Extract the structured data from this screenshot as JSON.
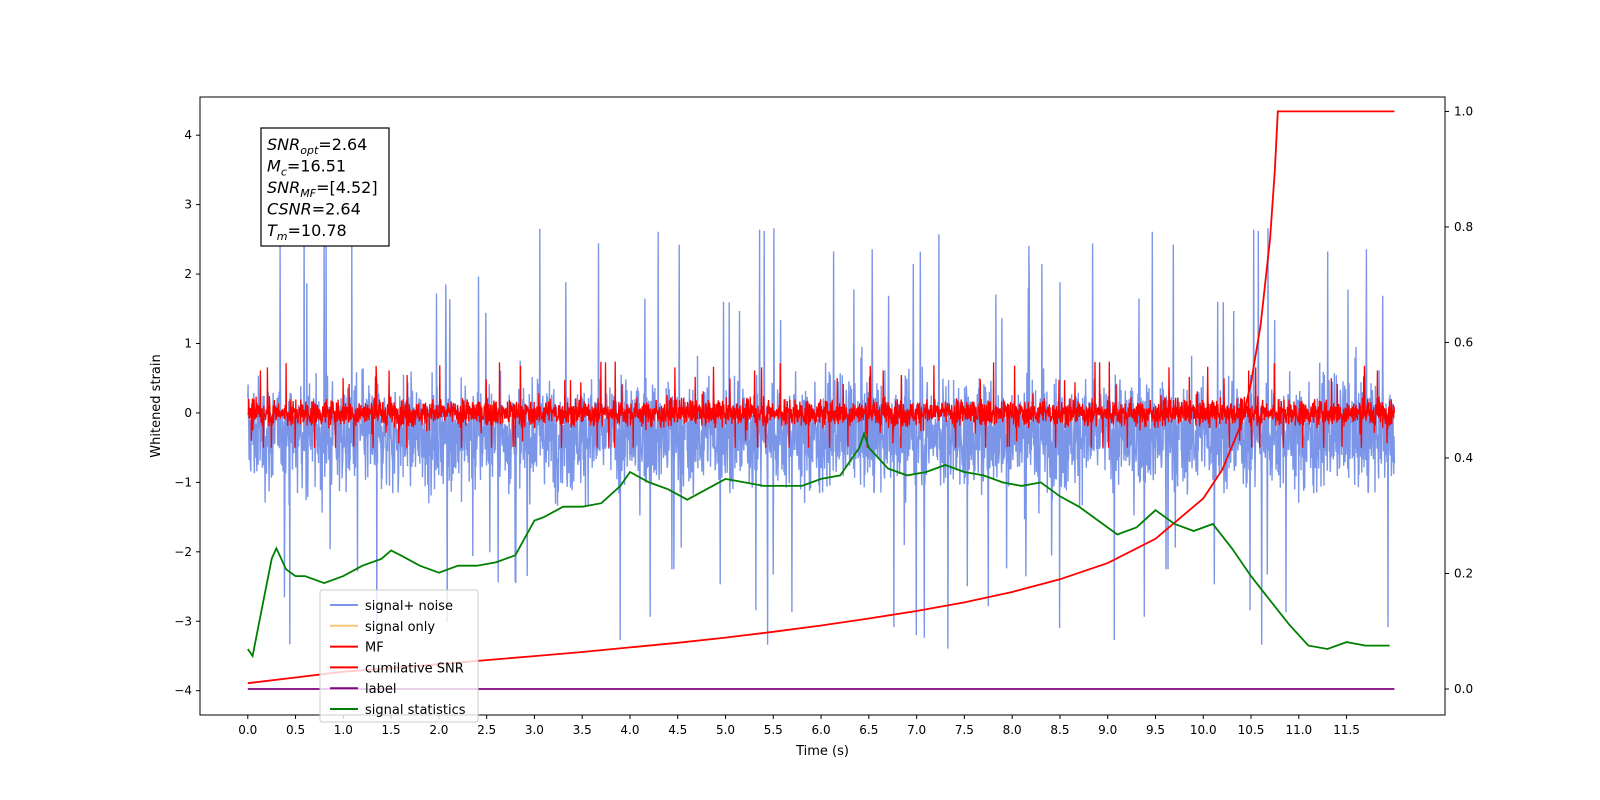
{
  "chart_data": {
    "type": "line",
    "xlabel": "Time (s)",
    "ylabel": "Whitened strain",
    "xlim": [
      -0.5,
      12.53
    ],
    "ylim": [
      -4.35,
      4.55
    ],
    "y2lim": [
      -0.045,
      1.025
    ],
    "x_ticks": [
      "0.0",
      "0.5",
      "1.0",
      "1.5",
      "2.0",
      "2.5",
      "3.0",
      "3.5",
      "4.0",
      "4.5",
      "5.0",
      "5.5",
      "6.0",
      "6.5",
      "7.0",
      "7.5",
      "8.0",
      "8.5",
      "9.0",
      "9.5",
      "10.0",
      "10.5",
      "11.0",
      "11.5"
    ],
    "y_ticks": [
      "−4",
      "−3",
      "−2",
      "−1",
      "0",
      "1",
      "2",
      "3",
      "4"
    ],
    "y2_ticks": [
      "0.0",
      "0.2",
      "0.4",
      "0.6",
      "0.8",
      "1.0"
    ],
    "grid": false,
    "legend_position": "lower-left",
    "annotation": {
      "lines": [
        {
          "base": "SNR",
          "sub": "opt",
          "value": "=2.64"
        },
        {
          "base": "M",
          "sub": "c",
          "value": "=16.51"
        },
        {
          "base": "SNR",
          "sub": "MF",
          "value": "=[4.52]"
        },
        {
          "base": "CSNR",
          "sub": "",
          "value": "=2.64"
        },
        {
          "base": "T",
          "sub": "m",
          "value": "=10.78"
        }
      ]
    },
    "series": [
      {
        "name": "signal+ noise",
        "color": "#7b96e8",
        "axis": "left",
        "style": "noise",
        "x_range": [
          0.0,
          12.0
        ],
        "mean": -0.3,
        "amplitude": 1.0,
        "peak_range": [
          -3.9,
          4.15
        ]
      },
      {
        "name": "signal only",
        "color": "#f5c97a",
        "axis": "left",
        "style": "hidden",
        "x_range": [
          0.0,
          12.0
        ]
      },
      {
        "name": "MF",
        "color": "#ff0000",
        "axis": "left",
        "style": "noise",
        "x_range": [
          0.0,
          12.0
        ],
        "mean": 0.0,
        "amplitude": 0.25,
        "peak_range": [
          -0.5,
          0.95
        ]
      },
      {
        "name": "cumilative SNR",
        "color": "#ff0000",
        "axis": "right",
        "style": "line",
        "x": [
          0.0,
          0.5,
          1.0,
          1.5,
          2.0,
          2.5,
          3.0,
          3.5,
          4.0,
          4.5,
          5.0,
          5.5,
          6.0,
          6.5,
          7.0,
          7.5,
          8.0,
          8.5,
          9.0,
          9.5,
          10.0,
          10.2,
          10.4,
          10.5,
          10.6,
          10.7,
          10.75,
          10.78,
          11.0,
          11.5,
          12.0
        ],
        "y": [
          0.01,
          0.02,
          0.03,
          0.036,
          0.043,
          0.05,
          0.057,
          0.064,
          0.072,
          0.08,
          0.089,
          0.099,
          0.11,
          0.122,
          0.135,
          0.15,
          0.168,
          0.19,
          0.218,
          0.26,
          0.33,
          0.38,
          0.46,
          0.53,
          0.63,
          0.78,
          0.9,
          1.0,
          1.0,
          1.0,
          1.0
        ]
      },
      {
        "name": "label",
        "color": "#800080",
        "axis": "right",
        "style": "line",
        "x": [
          0.0,
          12.0
        ],
        "y": [
          0.0,
          0.0
        ]
      },
      {
        "name": "signal statistics",
        "color": "#008000",
        "axis": "left",
        "style": "line",
        "x": [
          0.0,
          0.05,
          0.15,
          0.25,
          0.3,
          0.4,
          0.5,
          0.6,
          0.8,
          1.0,
          1.2,
          1.4,
          1.5,
          1.6,
          1.8,
          2.0,
          2.2,
          2.4,
          2.6,
          2.8,
          3.0,
          3.1,
          3.3,
          3.5,
          3.7,
          3.9,
          4.0,
          4.2,
          4.4,
          4.6,
          4.8,
          5.0,
          5.2,
          5.4,
          5.6,
          5.8,
          6.0,
          6.2,
          6.4,
          6.45,
          6.5,
          6.7,
          6.9,
          7.1,
          7.3,
          7.5,
          7.7,
          7.9,
          8.1,
          8.3,
          8.5,
          8.7,
          8.9,
          9.1,
          9.3,
          9.5,
          9.7,
          9.9,
          10.1,
          10.3,
          10.5,
          10.7,
          10.9,
          11.1,
          11.3,
          11.5,
          11.7,
          11.95
        ],
        "y": [
          -3.4,
          -3.5,
          -2.8,
          -2.1,
          -1.95,
          -2.25,
          -2.35,
          -2.35,
          -2.45,
          -2.35,
          -2.2,
          -2.1,
          -1.98,
          -2.05,
          -2.2,
          -2.3,
          -2.2,
          -2.2,
          -2.15,
          -2.05,
          -1.55,
          -1.5,
          -1.35,
          -1.35,
          -1.3,
          -1.05,
          -0.85,
          -1.0,
          -1.1,
          -1.25,
          -1.1,
          -0.95,
          -1.0,
          -1.05,
          -1.05,
          -1.05,
          -0.95,
          -0.9,
          -0.5,
          -0.3,
          -0.5,
          -0.8,
          -0.9,
          -0.85,
          -0.75,
          -0.85,
          -0.9,
          -1.0,
          -1.05,
          -1.0,
          -1.2,
          -1.35,
          -1.55,
          -1.75,
          -1.65,
          -1.4,
          -1.6,
          -1.7,
          -1.6,
          -1.95,
          -2.35,
          -2.7,
          -3.05,
          -3.35,
          -3.4,
          -3.3,
          -3.35,
          -3.35
        ]
      }
    ]
  }
}
